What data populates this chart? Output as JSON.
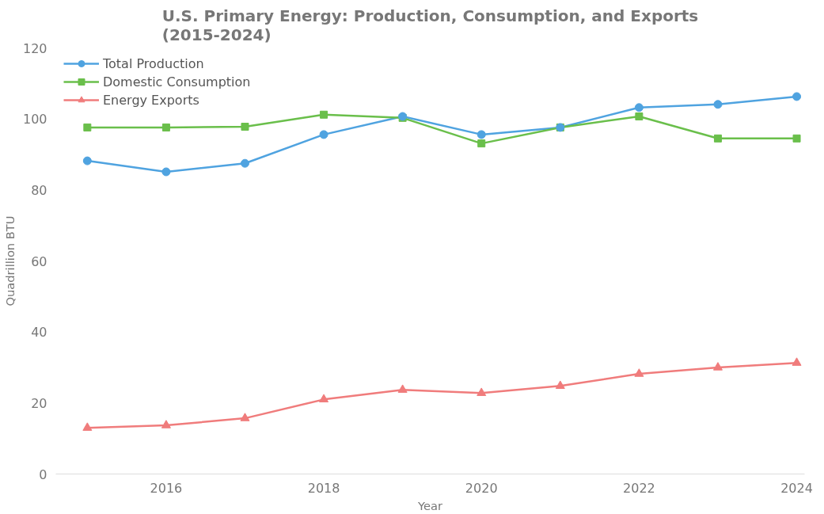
{
  "chart_data": {
    "type": "line",
    "title": "U.S. Primary Energy: Production, Consumption, and Exports\n(2015-2024)",
    "xlabel": "Year",
    "ylabel": "Quadrillion BTU",
    "x": [
      2015,
      2016,
      2017,
      2018,
      2019,
      2020,
      2021,
      2022,
      2023,
      2024
    ],
    "series": [
      {
        "name": "Total Production",
        "color": "#4fa3e0",
        "marker": "circle",
        "values": [
          88.2,
          85.1,
          87.5,
          95.6,
          100.7,
          95.6,
          97.6,
          103.2,
          104.1,
          106.3
        ]
      },
      {
        "name": "Domestic Consumption",
        "color": "#6abf4b",
        "marker": "square",
        "values": [
          97.6,
          97.6,
          97.8,
          101.2,
          100.3,
          93.1,
          97.6,
          100.7,
          94.5,
          94.5
        ]
      },
      {
        "name": "Energy Exports",
        "color": "#f07c7c",
        "marker": "triangle",
        "values": [
          13.0,
          13.7,
          15.7,
          21.0,
          23.7,
          22.8,
          24.8,
          28.2,
          30.0,
          31.3
        ]
      }
    ],
    "xlim": [
      2014.6,
      2024.1
    ],
    "xticks": [
      2016,
      2018,
      2020,
      2022,
      2024
    ],
    "ylim": [
      0,
      120
    ],
    "yticks": [
      0,
      20,
      40,
      60,
      80,
      100,
      120
    ],
    "grid": false,
    "legend": "top left",
    "line_style": "solid"
  }
}
